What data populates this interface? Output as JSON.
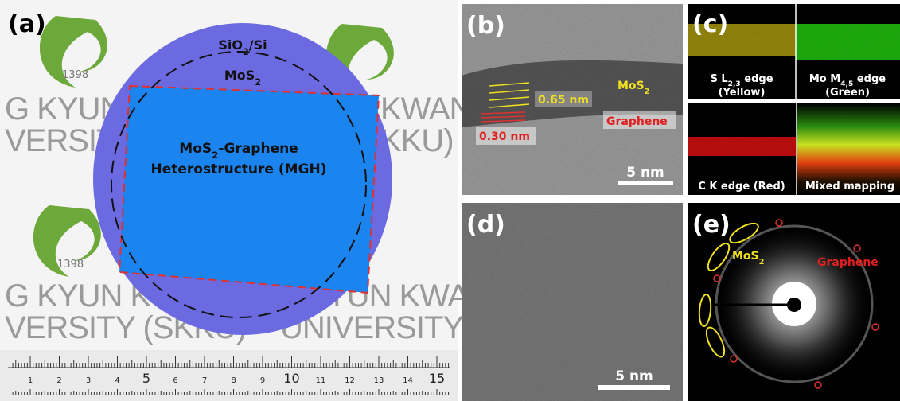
{
  "panel_a": {
    "label": "(a)",
    "substrate": {
      "parts": [
        {
          "text": "SiO"
        },
        {
          "text": "2",
          "sub": true
        },
        {
          "text": "/Si"
        }
      ]
    },
    "film": {
      "parts": [
        {
          "text": "MoS"
        },
        {
          "text": "2",
          "sub": true
        }
      ]
    },
    "mgh_line1": {
      "parts": [
        {
          "text": "MoS"
        },
        {
          "text": "2",
          "sub": true
        },
        {
          "text": "-Graphene"
        }
      ]
    },
    "mgh_line2": "Heterostructure (MGH)",
    "watermark": [
      "G KYUN K",
      "VERSITY",
      "KWAN",
      "(SKKU)",
      "G KYUN KWA",
      "VERSITY (SKKU)",
      "YUN KWAN",
      "UNIVERSITY (SKKU"
    ],
    "logo_year": [
      "1398",
      "1398"
    ],
    "ruler": [
      "1",
      "2",
      "3",
      "4",
      "5",
      "6",
      "7",
      "8",
      "9",
      "10",
      "11",
      "12",
      "13",
      "14",
      "15"
    ]
  },
  "panel_b": {
    "label": "(b)",
    "spacing_mos2": "0.65 nm",
    "mos2": {
      "parts": [
        {
          "text": "MoS"
        },
        {
          "text": "2",
          "sub": true
        }
      ]
    },
    "graphene": "Graphene",
    "spacing_graphene": "0.30 nm",
    "scale": "5 nm"
  },
  "panel_c": {
    "label": "(c)",
    "s_edge": {
      "parts": [
        {
          "text": "S L"
        },
        {
          "text": "2,3",
          "sub": true
        },
        {
          "text": " edge"
        }
      ]
    },
    "s_color": "(Yellow)",
    "mo_edge": {
      "parts": [
        {
          "text": "Mo M"
        },
        {
          "text": "4,5",
          "sub": true
        },
        {
          "text": " edge"
        }
      ]
    },
    "mo_color": "(Green)",
    "c_edge": "C K edge (Red)",
    "mixed": "Mixed mapping"
  },
  "panel_d": {
    "label": "(d)",
    "scale": "5 nm"
  },
  "panel_e": {
    "label": "(e)",
    "mos2": {
      "parts": [
        {
          "text": "MoS"
        },
        {
          "text": "2",
          "sub": true
        }
      ]
    },
    "graphene": "Graphene"
  }
}
